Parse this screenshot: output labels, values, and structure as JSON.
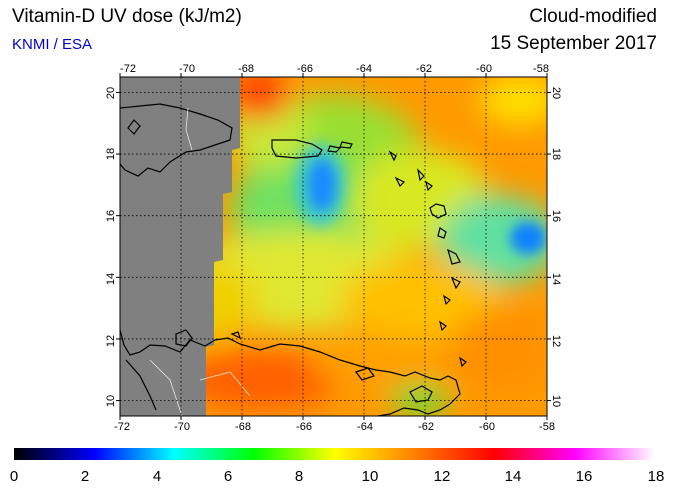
{
  "header": {
    "title": "Vitamin-D UV dose (kJ/m2)",
    "source": "KNMI / ESA",
    "mode": "Cloud-modified",
    "date": "15 September 2017"
  },
  "map": {
    "lon_range": [
      -72,
      -58
    ],
    "lat_range": [
      9.5,
      20.5
    ],
    "lon_ticks": [
      "-72",
      "-70",
      "-68",
      "-66",
      "-64",
      "-62",
      "-60",
      "-58"
    ],
    "lat_ticks": [
      "10",
      "12",
      "14",
      "16",
      "18",
      "20"
    ],
    "no_data_color": "#808080"
  },
  "colorbar": {
    "range": [
      0,
      18
    ],
    "tick_labels": [
      "0",
      "2",
      "4",
      "6",
      "8",
      "10",
      "12",
      "14",
      "16",
      "18"
    ],
    "stops": [
      "#000000",
      "#0000ff",
      "#00ffff",
      "#00ff00",
      "#ffff00",
      "#ff8000",
      "#ff0000",
      "#ff00ff",
      "#ffffff"
    ]
  }
}
